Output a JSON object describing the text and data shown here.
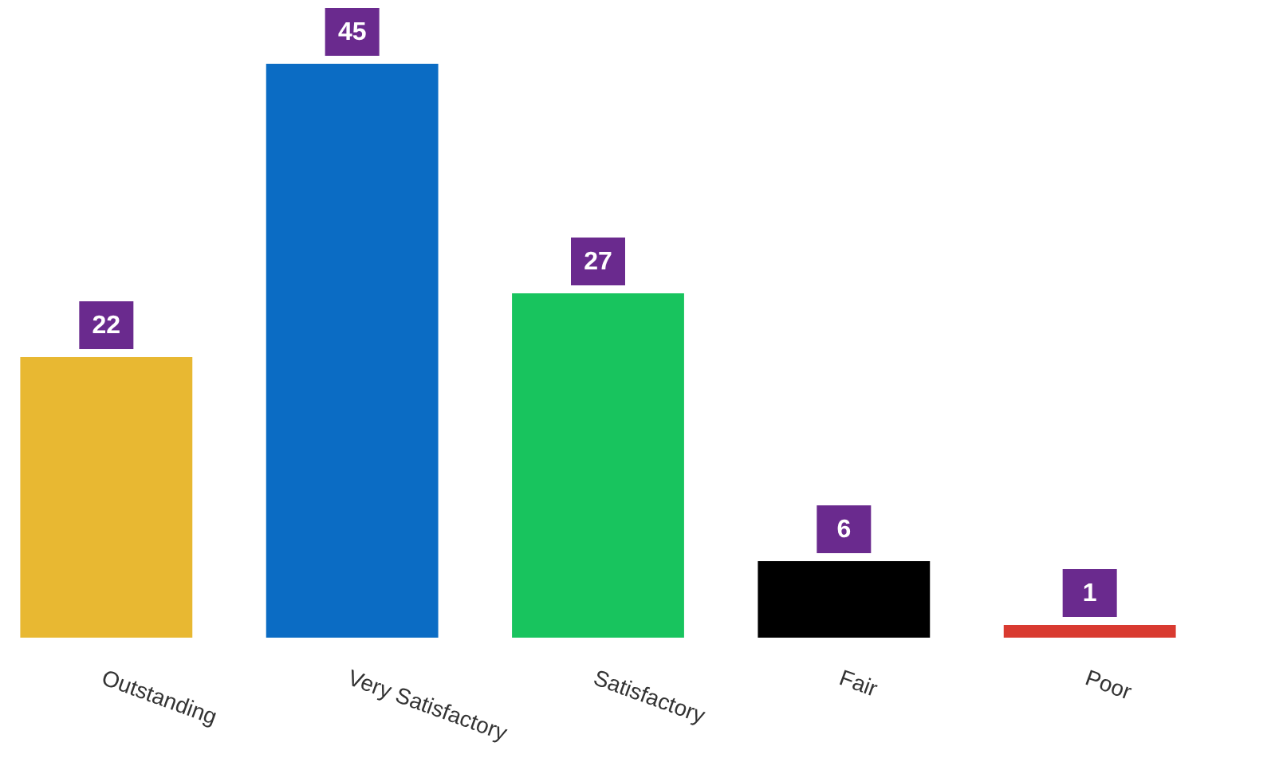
{
  "chart_data": {
    "type": "bar",
    "categories": [
      "Outstanding",
      "Very Satisfactory",
      "Satisfactory",
      "Fair",
      "Poor"
    ],
    "values": [
      22,
      45,
      27,
      6,
      1
    ],
    "colors": [
      "#e8b832",
      "#0b6cc4",
      "#18c45e",
      "#000000",
      "#d93a30"
    ],
    "data_labels": true,
    "grid": false
  }
}
